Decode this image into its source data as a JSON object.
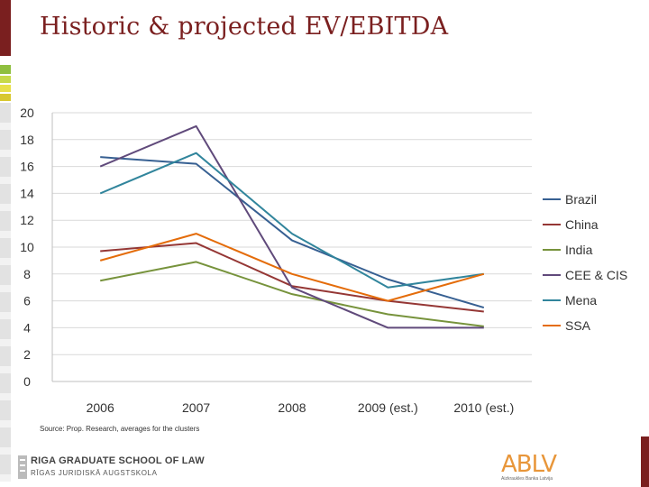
{
  "title": "Historic & projected EV/EBITDA",
  "source": "Source: Prop. Research, averages for the clusters",
  "footer": {
    "school_name": "RIGA GRADUATE SCHOOL OF LAW",
    "school_name_lv": "RĪGAS JURIDISKĀ AUGSTSKOLA",
    "bank_logo": "ABLV",
    "bank_name": "Aizkraukles Banka Latvija"
  },
  "chart_data": {
    "type": "line",
    "title": "",
    "xlabel": "",
    "ylabel": "",
    "categories": [
      "2006",
      "2007",
      "2008",
      "2009 (est.)",
      "2010 (est.)"
    ],
    "ylim": [
      0,
      20
    ],
    "yticks": [
      "0",
      "2",
      "4",
      "6",
      "8",
      "10",
      "12",
      "14",
      "16",
      "18",
      "20"
    ],
    "grid": true,
    "legend": "right",
    "series": [
      {
        "name": "Brazil",
        "color": "#376092",
        "values": [
          16.7,
          16.2,
          10.5,
          7.6,
          5.5
        ]
      },
      {
        "name": "China",
        "color": "#953735",
        "values": [
          9.7,
          10.3,
          7.1,
          6.0,
          5.2
        ]
      },
      {
        "name": "India",
        "color": "#77933c",
        "values": [
          7.5,
          8.9,
          6.5,
          5.0,
          4.1
        ]
      },
      {
        "name": "CEE & CIS",
        "color": "#604a7b",
        "values": [
          16.0,
          19.0,
          7.0,
          4.0,
          4.0
        ]
      },
      {
        "name": "Mena",
        "color": "#31859c",
        "values": [
          14.0,
          17.0,
          11.0,
          7.0,
          8.0
        ]
      },
      {
        "name": "SSA",
        "color": "#e46c0a",
        "values": [
          9.0,
          11.0,
          8.0,
          6.0,
          8.0
        ]
      }
    ]
  }
}
